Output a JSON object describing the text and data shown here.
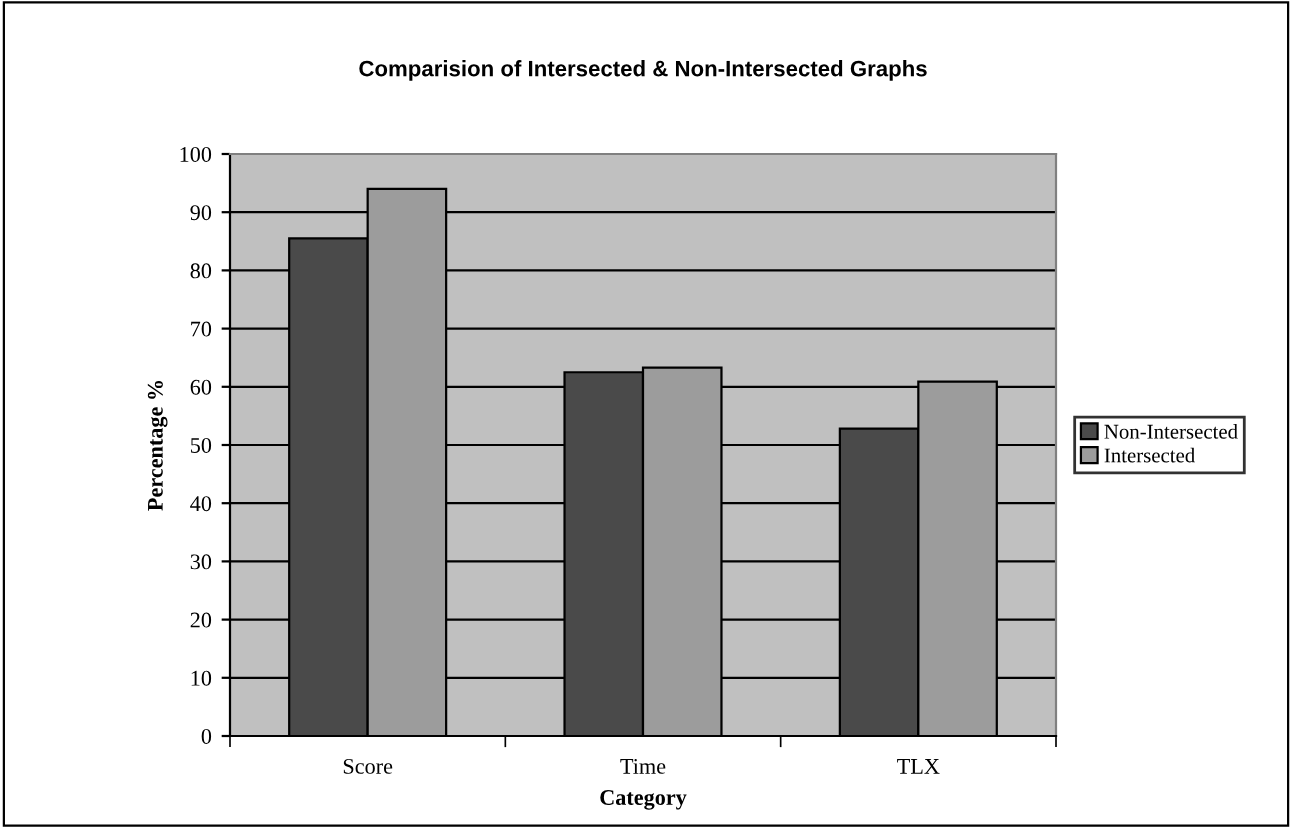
{
  "chart_data": {
    "type": "bar",
    "title": "Comparision of Intersected & Non-Intersected Graphs",
    "xlabel": "Category",
    "ylabel": "Percentage %",
    "categories": [
      "Score",
      "Time",
      "TLX"
    ],
    "series": [
      {
        "name": "Non-Intersected",
        "color": "#4a4a4a",
        "values": [
          85.5,
          62.5,
          52.8
        ]
      },
      {
        "name": "Intersected",
        "color": "#9c9c9c",
        "values": [
          94.0,
          63.3,
          60.9
        ]
      }
    ],
    "ylim": [
      0,
      100
    ],
    "yticks": [
      0,
      10,
      20,
      30,
      40,
      50,
      60,
      70,
      80,
      90,
      100
    ],
    "grid": "y",
    "legend": "right"
  }
}
